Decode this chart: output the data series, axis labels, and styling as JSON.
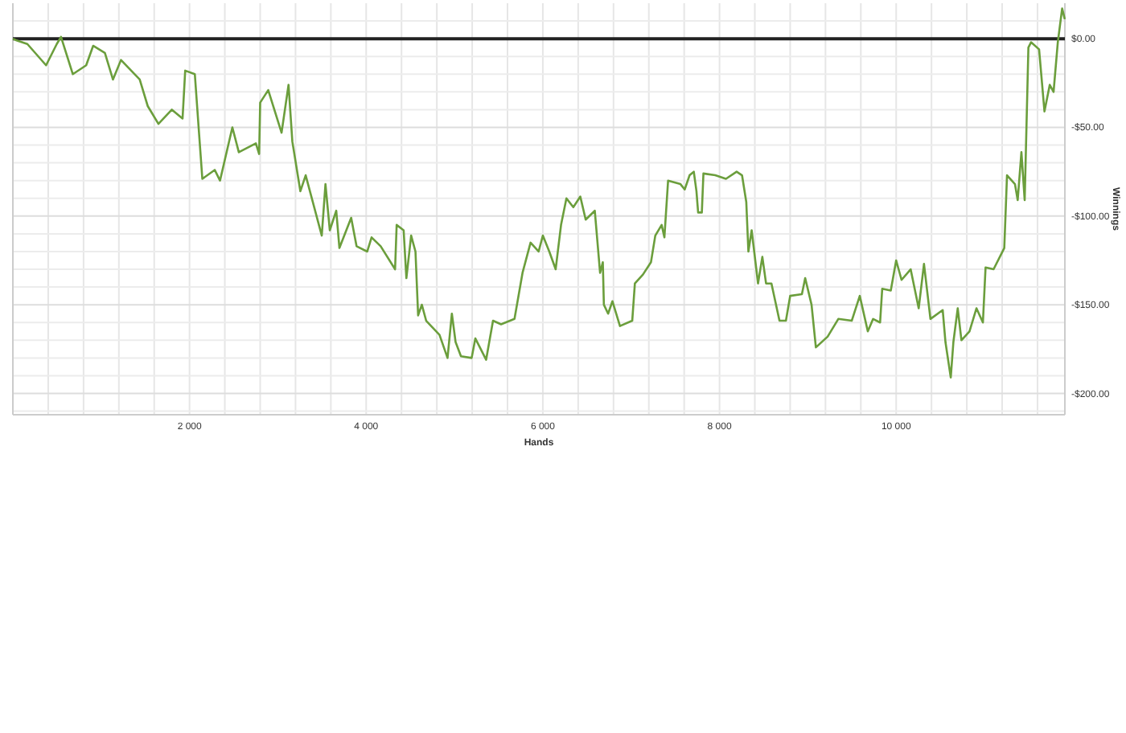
{
  "chart_data": {
    "type": "line",
    "xlabel": "Hands",
    "ylabel": "Winnings",
    "xlim": [
      0,
      11910
    ],
    "ylim": [
      -212,
      20
    ],
    "xticks": [
      {
        "value": 400,
        "label": null
      },
      {
        "value": 800,
        "label": null
      },
      {
        "value": 1200,
        "label": null
      },
      {
        "value": 1600,
        "label": null
      },
      {
        "value": 2000,
        "label": "2 000"
      },
      {
        "value": 2400,
        "label": null
      },
      {
        "value": 2800,
        "label": null
      },
      {
        "value": 3200,
        "label": null
      },
      {
        "value": 3600,
        "label": null
      },
      {
        "value": 4000,
        "label": "4 000"
      },
      {
        "value": 4400,
        "label": null
      },
      {
        "value": 4800,
        "label": null
      },
      {
        "value": 5200,
        "label": null
      },
      {
        "value": 5600,
        "label": null
      },
      {
        "value": 6000,
        "label": "6 000"
      },
      {
        "value": 6400,
        "label": null
      },
      {
        "value": 6800,
        "label": null
      },
      {
        "value": 7200,
        "label": null
      },
      {
        "value": 7600,
        "label": null
      },
      {
        "value": 8000,
        "label": "8 000"
      },
      {
        "value": 8400,
        "label": null
      },
      {
        "value": 8800,
        "label": null
      },
      {
        "value": 9200,
        "label": null
      },
      {
        "value": 9600,
        "label": null
      },
      {
        "value": 10000,
        "label": "10 000"
      },
      {
        "value": 10400,
        "label": null
      },
      {
        "value": 10800,
        "label": null
      },
      {
        "value": 11200,
        "label": null
      },
      {
        "value": 11600,
        "label": null
      }
    ],
    "yticks": [
      {
        "value": -210,
        "label": null
      },
      {
        "value": -200,
        "label": "-$200.00"
      },
      {
        "value": -190,
        "label": null
      },
      {
        "value": -180,
        "label": null
      },
      {
        "value": -170,
        "label": null
      },
      {
        "value": -160,
        "label": null
      },
      {
        "value": -150,
        "label": "-$150.00"
      },
      {
        "value": -140,
        "label": null
      },
      {
        "value": -130,
        "label": null
      },
      {
        "value": -120,
        "label": null
      },
      {
        "value": -110,
        "label": null
      },
      {
        "value": -100,
        "label": "-$100.00"
      },
      {
        "value": -90,
        "label": null
      },
      {
        "value": -80,
        "label": null
      },
      {
        "value": -70,
        "label": null
      },
      {
        "value": -60,
        "label": null
      },
      {
        "value": -50,
        "label": "-$50.00"
      },
      {
        "value": -40,
        "label": null
      },
      {
        "value": -30,
        "label": null
      },
      {
        "value": -20,
        "label": null
      },
      {
        "value": -10,
        "label": null
      },
      {
        "value": 0,
        "label": "$0.00"
      },
      {
        "value": 10,
        "label": null
      }
    ],
    "grid": true,
    "marker": "none",
    "line_style": "solid",
    "ref_lines": [
      {
        "axis": "y",
        "value": 0,
        "color": "#222222"
      }
    ],
    "series": [
      {
        "color": "#6b9e3c",
        "x": [
          0,
          42,
          164,
          376,
          497,
          545,
          679,
          830,
          909,
          1042,
          1133,
          1224,
          1436,
          1527,
          1648,
          1800,
          1921,
          1951,
          2060,
          2103,
          2145,
          2285,
          2345,
          2485,
          2558,
          2751,
          2788,
          2800,
          2891,
          3042,
          3121,
          3164,
          3255,
          3315,
          3497,
          3539,
          3588,
          3661,
          3697,
          3830,
          3891,
          4012,
          4061,
          4164,
          4327,
          4345,
          4424,
          4455,
          4509,
          4558,
          4588,
          4630,
          4679,
          4830,
          4921,
          4970,
          5012,
          5073,
          5194,
          5236,
          5358,
          5436,
          5527,
          5679,
          5770,
          5861,
          5952,
          6000,
          6073,
          6145,
          6206,
          6267,
          6345,
          6424,
          6485,
          6588,
          6648,
          6679,
          6691,
          6739,
          6788,
          6873,
          7012,
          7042,
          7133,
          7224,
          7273,
          7345,
          7376,
          7418,
          7558,
          7606,
          7661,
          7709,
          7739,
          7758,
          7800,
          7818,
          7952,
          8073,
          8194,
          8255,
          8303,
          8327,
          8364,
          8436,
          8485,
          8527,
          8588,
          8679,
          8752,
          8800,
          8933,
          8970,
          9042,
          9091,
          9224,
          9345,
          9497,
          9588,
          9679,
          9739,
          9818,
          9842,
          9939,
          10000,
          10061,
          10164,
          10255,
          10315,
          10388,
          10527,
          10558,
          10618,
          10648,
          10697,
          10739,
          10830,
          10909,
          10982,
          11012,
          11103,
          11224,
          11255,
          11345,
          11376,
          11418,
          11455,
          11497,
          11527,
          11618,
          11679,
          11739,
          11782,
          11830,
          11879,
          11909
        ],
        "values": [
          0,
          -1,
          -3,
          -15,
          -3,
          1,
          -20,
          -15,
          -4,
          -8,
          -23,
          -12,
          -23,
          -38,
          -48,
          -40,
          -45,
          -18,
          -20,
          -50,
          -79,
          -74,
          -80,
          -50,
          -64,
          -59,
          -65,
          -36,
          -29,
          -53,
          -26,
          -58,
          -86,
          -77,
          -111,
          -82,
          -108,
          -97,
          -118,
          -101,
          -117,
          -120,
          -112,
          -117,
          -130,
          -105,
          -108,
          -135,
          -111,
          -120,
          -156,
          -150,
          -159,
          -167,
          -180,
          -155,
          -171,
          -179,
          -180,
          -169,
          -181,
          -159,
          -161,
          -158,
          -132,
          -115,
          -120,
          -111,
          -120,
          -130,
          -105,
          -90,
          -95,
          -89,
          -102,
          -97,
          -132,
          -126,
          -150,
          -155,
          -148,
          -162,
          -159,
          -138,
          -133,
          -126,
          -111,
          -105,
          -112,
          -80,
          -82,
          -85,
          -77,
          -75,
          -86,
          -98,
          -98,
          -76,
          -77,
          -79,
          -75,
          -77,
          -92,
          -120,
          -108,
          -138,
          -123,
          -138,
          -138,
          -159,
          -159,
          -145,
          -144,
          -135,
          -150,
          -174,
          -168,
          -158,
          -159,
          -145,
          -165,
          -158,
          -160,
          -141,
          -142,
          -125,
          -136,
          -130,
          -152,
          -127,
          -158,
          -153,
          -171,
          -191,
          -171,
          -152,
          -170,
          -165,
          -152,
          -160,
          -129,
          -130,
          -118,
          -77,
          -82,
          -91,
          -64,
          -91,
          -5,
          -2,
          -6,
          -41,
          -26,
          -30,
          -2,
          17,
          11
        ]
      }
    ]
  }
}
